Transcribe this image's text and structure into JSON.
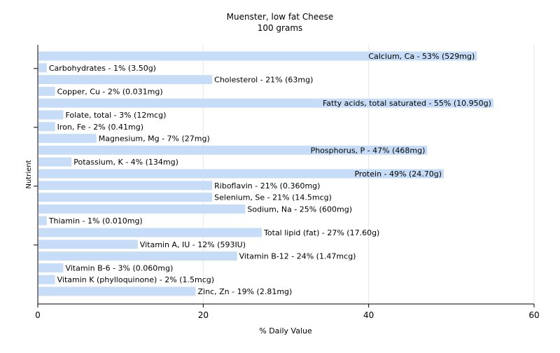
{
  "chart_data": {
    "type": "bar",
    "orientation": "horizontal",
    "title": "Muenster, low fat Cheese",
    "subtitle": "100 grams",
    "xlabel": "% Daily Value",
    "ylabel": "Nutrient",
    "xlim": [
      0,
      60
    ],
    "xticks": [
      "0",
      "20",
      "40",
      "60"
    ],
    "grid": "vertical",
    "bar_color": "#c6dcf7",
    "categories": [
      "Calcium, Ca",
      "Carbohydrates",
      "Cholesterol",
      "Copper, Cu",
      "Fatty acids, total saturated",
      "Folate, total",
      "Iron, Fe",
      "Magnesium, Mg",
      "Phosphorus, P",
      "Potassium, K",
      "Protein",
      "Riboflavin",
      "Selenium, Se",
      "Sodium, Na",
      "Thiamin",
      "Total lipid (fat)",
      "Vitamin A, IU",
      "Vitamin B-12",
      "Vitamin B-6",
      "Vitamin K (phylloquinone)",
      "Zinc, Zn"
    ],
    "values": [
      53,
      1,
      21,
      2,
      55,
      3,
      2,
      7,
      47,
      4,
      49,
      21,
      21,
      25,
      1,
      27,
      12,
      24,
      3,
      2,
      19
    ],
    "labels": [
      "Calcium, Ca - 53% (529mg)",
      "Carbohydrates - 1% (3.50g)",
      "Cholesterol - 21% (63mg)",
      "Copper, Cu - 2% (0.031mg)",
      "Fatty acids, total saturated - 55% (10.950g)",
      "Folate, total - 3% (12mcg)",
      "Iron, Fe - 2% (0.41mg)",
      "Magnesium, Mg - 7% (27mg)",
      "Phosphorus, P - 47% (468mg)",
      "Potassium, K - 4% (134mg)",
      "Protein - 49% (24.70g)",
      "Riboflavin - 21% (0.360mg)",
      "Selenium, Se - 21% (14.5mcg)",
      "Sodium, Na - 25% (600mg)",
      "Thiamin - 1% (0.010mg)",
      "Total lipid (fat) - 27% (17.60g)",
      "Vitamin A, IU - 12% (593IU)",
      "Vitamin B-12 - 24% (1.47mcg)",
      "Vitamin B-6 - 3% (0.060mg)",
      "Vitamin K (phylloquinone) - 2% (1.5mcg)",
      "Zinc, Zn - 19% (2.81mg)"
    ]
  }
}
